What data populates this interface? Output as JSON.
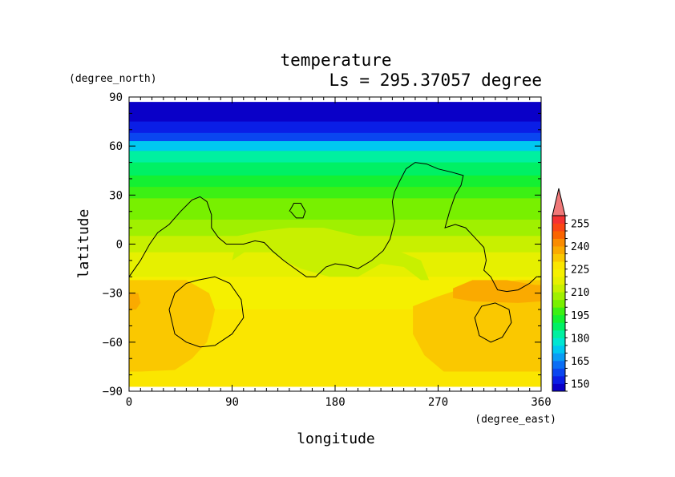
{
  "chart_data": {
    "type": "heatmap",
    "title": "temperature",
    "subtitle": "Ls = 295.37057 degree",
    "xlabel": "longitude",
    "ylabel": "latitude",
    "xunit": "(degree_east)",
    "yunit": "(degree_north)",
    "xlim": [
      0,
      360
    ],
    "ylim": [
      -90,
      90
    ],
    "data_lat_range": [
      -87,
      87
    ],
    "xticks": [
      0,
      90,
      180,
      270,
      360
    ],
    "yticks": [
      90,
      60,
      30,
      0,
      -30,
      -60,
      -90
    ],
    "xtick_labels": [
      "0",
      "90",
      "180",
      "270",
      "360"
    ],
    "ytick_labels": [
      "90",
      "60",
      "30",
      "0",
      "−30",
      "−60",
      "−90"
    ],
    "colorbar": {
      "levels": [
        145,
        150,
        155,
        160,
        165,
        170,
        175,
        180,
        185,
        190,
        195,
        200,
        205,
        210,
        215,
        220,
        225,
        230,
        235,
        240,
        245,
        250,
        255,
        260
      ],
      "colors": [
        "#0a00c8",
        "#0a1ee6",
        "#0a46f0",
        "#0a6ef5",
        "#0a9cf5",
        "#00c8f0",
        "#00e6d2",
        "#00f0a0",
        "#00f064",
        "#14f032",
        "#3cf014",
        "#78f000",
        "#a0f000",
        "#c8f000",
        "#e6f000",
        "#f5f000",
        "#fae600",
        "#fac800",
        "#faaa00",
        "#fa8c00",
        "#fa6400",
        "#fa4614",
        "#f53232"
      ],
      "labels": [
        "255",
        "240",
        "225",
        "210",
        "195",
        "180",
        "165",
        "150"
      ],
      "label_values": [
        255,
        240,
        225,
        210,
        195,
        180,
        165,
        150
      ],
      "extend_max_color": "#f07878"
    },
    "latitude_profile": [
      {
        "lat": 87,
        "value": 147
      },
      {
        "lat": 75,
        "value": 150
      },
      {
        "lat": 68,
        "value": 158
      },
      {
        "lat": 63,
        "value": 170
      },
      {
        "lat": 57,
        "value": 180
      },
      {
        "lat": 50,
        "value": 186
      },
      {
        "lat": 42,
        "value": 193
      },
      {
        "lat": 35,
        "value": 198
      },
      {
        "lat": 28,
        "value": 203
      },
      {
        "lat": 15,
        "value": 208
      },
      {
        "lat": 5,
        "value": 212
      },
      {
        "lat": -5,
        "value": 218
      },
      {
        "lat": -20,
        "value": 224
      },
      {
        "lat": -40,
        "value": 226
      },
      {
        "lat": -60,
        "value": 226
      },
      {
        "lat": -87,
        "value": 226
      }
    ],
    "regions": [
      {
        "value": 230,
        "polygon": [
          [
            0,
            -22
          ],
          [
            22,
            -22
          ],
          [
            50,
            -22
          ],
          [
            70,
            -30
          ],
          [
            75,
            -40
          ],
          [
            72,
            -50
          ],
          [
            68,
            -60
          ],
          [
            55,
            -70
          ],
          [
            40,
            -77
          ],
          [
            10,
            -78
          ],
          [
            0,
            -78
          ]
        ]
      },
      {
        "value": 230,
        "polygon": [
          [
            360,
            -22
          ],
          [
            340,
            -22
          ],
          [
            300,
            -25
          ],
          [
            270,
            -32
          ],
          [
            248,
            -38
          ],
          [
            248,
            -55
          ],
          [
            258,
            -68
          ],
          [
            275,
            -78
          ],
          [
            360,
            -78
          ]
        ]
      },
      {
        "value": 238,
        "polygon": [
          [
            283,
            -27
          ],
          [
            300,
            -22
          ],
          [
            330,
            -22
          ],
          [
            355,
            -25
          ],
          [
            360,
            -25
          ],
          [
            360,
            -35
          ],
          [
            340,
            -36
          ],
          [
            300,
            -35
          ],
          [
            283,
            -33
          ]
        ]
      },
      {
        "value": 236,
        "polygon": [
          [
            0,
            -30
          ],
          [
            8,
            -30
          ],
          [
            10,
            -36
          ],
          [
            6,
            -40
          ],
          [
            0,
            -40
          ]
        ]
      },
      {
        "value": 210,
        "polygon": [
          [
            90,
            -10
          ],
          [
            105,
            -3
          ],
          [
            120,
            -3
          ],
          [
            135,
            -10
          ],
          [
            150,
            -15
          ],
          [
            175,
            -20
          ],
          [
            200,
            -20
          ],
          [
            220,
            -12
          ],
          [
            240,
            -14
          ],
          [
            255,
            -22
          ],
          [
            262,
            -22
          ],
          [
            255,
            -10
          ],
          [
            238,
            -5
          ],
          [
            220,
            0
          ],
          [
            200,
            5
          ],
          [
            170,
            10
          ],
          [
            140,
            10
          ],
          [
            115,
            8
          ],
          [
            95,
            5
          ]
        ]
      }
    ],
    "coastlines": [
      [
        [
          0,
          -20
        ],
        [
          10,
          -10
        ],
        [
          18,
          0
        ],
        [
          25,
          7
        ],
        [
          35,
          12
        ],
        [
          45,
          20
        ],
        [
          55,
          27
        ],
        [
          62,
          29
        ],
        [
          68,
          26
        ],
        [
          72,
          18
        ],
        [
          72,
          10
        ],
        [
          78,
          4
        ],
        [
          85,
          0
        ],
        [
          100,
          0
        ],
        [
          110,
          2
        ],
        [
          118,
          1
        ],
        [
          125,
          -4
        ],
        [
          135,
          -10
        ],
        [
          145,
          -15
        ],
        [
          155,
          -20
        ],
        [
          163,
          -20
        ],
        [
          172,
          -14
        ],
        [
          180,
          -12
        ],
        [
          190,
          -13
        ],
        [
          200,
          -15
        ],
        [
          212,
          -10
        ],
        [
          222,
          -4
        ],
        [
          228,
          3
        ],
        [
          232,
          14
        ],
        [
          230,
          26
        ],
        [
          232,
          32
        ],
        [
          236,
          38
        ],
        [
          242,
          46
        ],
        [
          250,
          50
        ],
        [
          260,
          49
        ],
        [
          270,
          46
        ],
        [
          282,
          44
        ],
        [
          292,
          42
        ],
        [
          290,
          36
        ],
        [
          285,
          30
        ],
        [
          280,
          20
        ],
        [
          276,
          10
        ],
        [
          285,
          12
        ],
        [
          294,
          10
        ],
        [
          302,
          4
        ],
        [
          310,
          -2
        ],
        [
          312,
          -10
        ],
        [
          310,
          -16
        ],
        [
          316,
          -20
        ],
        [
          322,
          -28
        ],
        [
          330,
          -29
        ],
        [
          340,
          -28
        ],
        [
          350,
          -24
        ],
        [
          356,
          -20
        ],
        [
          360,
          -20
        ]
      ],
      [
        [
          140,
          20
        ],
        [
          144,
          25
        ],
        [
          150,
          25
        ],
        [
          154,
          20
        ],
        [
          152,
          16
        ],
        [
          146,
          16
        ],
        [
          141,
          20
        ]
      ],
      [
        [
          75,
          -20
        ],
        [
          60,
          -22
        ],
        [
          50,
          -24
        ],
        [
          40,
          -30
        ],
        [
          35,
          -40
        ],
        [
          40,
          -55
        ],
        [
          50,
          -60
        ],
        [
          62,
          -63
        ],
        [
          75,
          -62
        ],
        [
          90,
          -55
        ],
        [
          100,
          -45
        ],
        [
          98,
          -34
        ],
        [
          88,
          -24
        ],
        [
          75,
          -20
        ]
      ],
      [
        [
          320,
          -36
        ],
        [
          308,
          -38
        ],
        [
          302,
          -45
        ],
        [
          306,
          -56
        ],
        [
          316,
          -60
        ],
        [
          326,
          -57
        ],
        [
          334,
          -48
        ],
        [
          332,
          -40
        ],
        [
          320,
          -36
        ]
      ]
    ]
  }
}
